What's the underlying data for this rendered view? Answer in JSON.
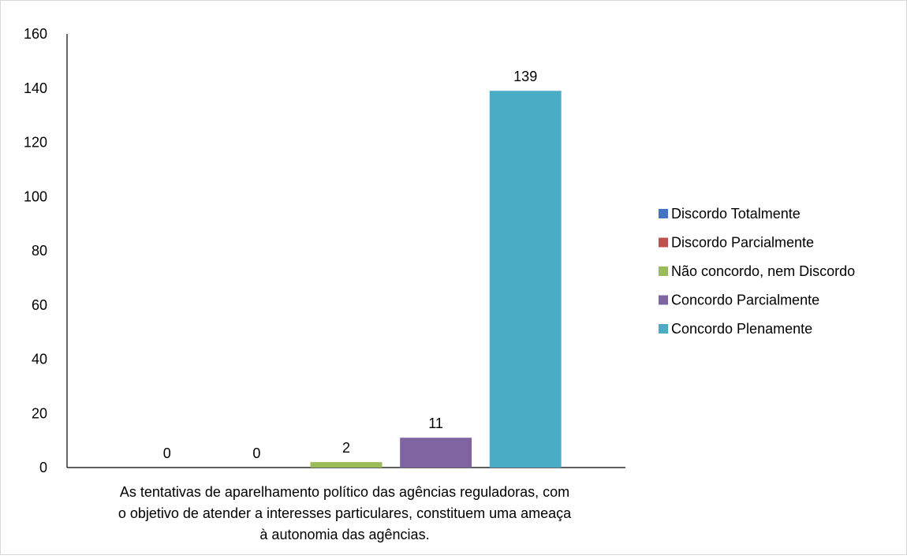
{
  "chart_data": {
    "type": "bar",
    "category_label": [
      "As tentativas de aparelhamento político das agências reguladoras, com",
      "o objetivo de atender a interesses particulares, constituem uma ameaça",
      "à autonomia das agências."
    ],
    "series": [
      {
        "name": "Discordo Totalmente",
        "value": 0,
        "color": "#4472C4"
      },
      {
        "name": "Discordo Parcialmente",
        "value": 0,
        "color": "#C0504D"
      },
      {
        "name": "Não concordo, nem Discordo",
        "value": 2,
        "color": "#9BBB59"
      },
      {
        "name": "Concordo Parcialmente",
        "value": 11,
        "color": "#8064A2"
      },
      {
        "name": "Concordo Plenamente",
        "value": 139,
        "color": "#4BACC6"
      }
    ],
    "ylim": [
      0,
      160
    ],
    "yticks": [
      "0",
      "20",
      "40",
      "60",
      "80",
      "100",
      "120",
      "140",
      "160"
    ],
    "grid": false,
    "legend_position": "right"
  }
}
